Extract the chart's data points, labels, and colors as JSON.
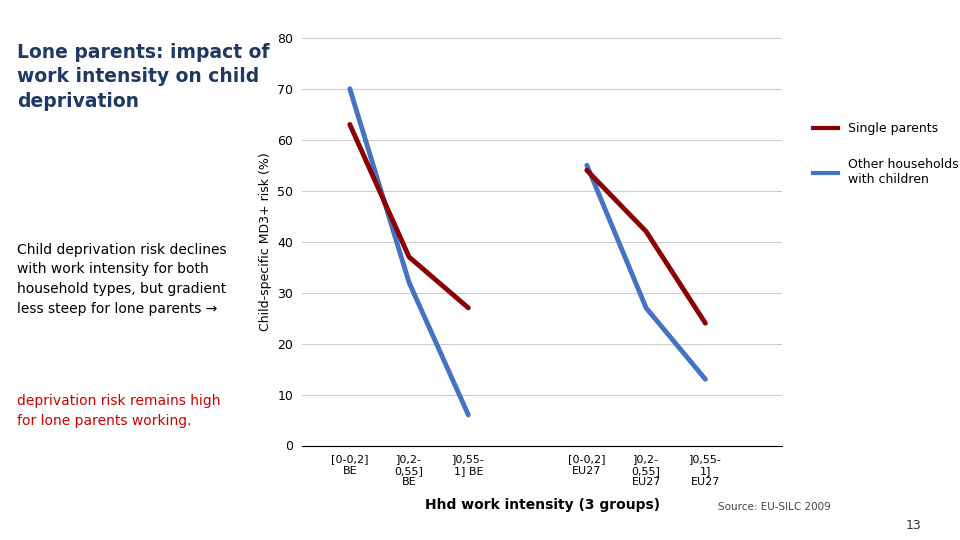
{
  "title_bold": "Lone parents: impact of\nwork intensity on child\ndeprivation",
  "body_text_black": "Child deprivation risk declines\nwith work intensity for both\nhousehold types, but gradient\nless steep for lone parents →",
  "body_text_red": "deprivation risk remains high\nfor lone parents working.",
  "ylabel": "Child-specific MD3+ risk (%)",
  "xlabel": "Hhd work intensity (3 groups)",
  "source": "Source: EU-SILC 2009",
  "page_num": "13",
  "ylim": [
    0,
    80
  ],
  "yticks": [
    0,
    10,
    20,
    30,
    40,
    50,
    60,
    70,
    80
  ],
  "x_labels_group1": [
    "[0-0,2]\nBE",
    "]0,2-\n0,55]\nBE",
    "]0,55-\n1] BE"
  ],
  "x_labels_group2": [
    "[0-0,2]\nEU27",
    "]0,2-\n0,55]\nEU27",
    "]0,55-\n1]\nEU27"
  ],
  "single_parents_BE": [
    63,
    37,
    27
  ],
  "other_hhd_BE": [
    70,
    32,
    6
  ],
  "single_parents_EU27": [
    54,
    42,
    24
  ],
  "other_hhd_EU27": [
    55,
    27,
    13
  ],
  "color_single": "#8B0000",
  "color_other": "#4472C4",
  "legend_single": "Single parents",
  "legend_other": "Other households\nwith children",
  "background_color": "#FFFFFF",
  "title_color": "#1F3864",
  "body_color_black": "#000000",
  "body_color_red": "#CC0000"
}
